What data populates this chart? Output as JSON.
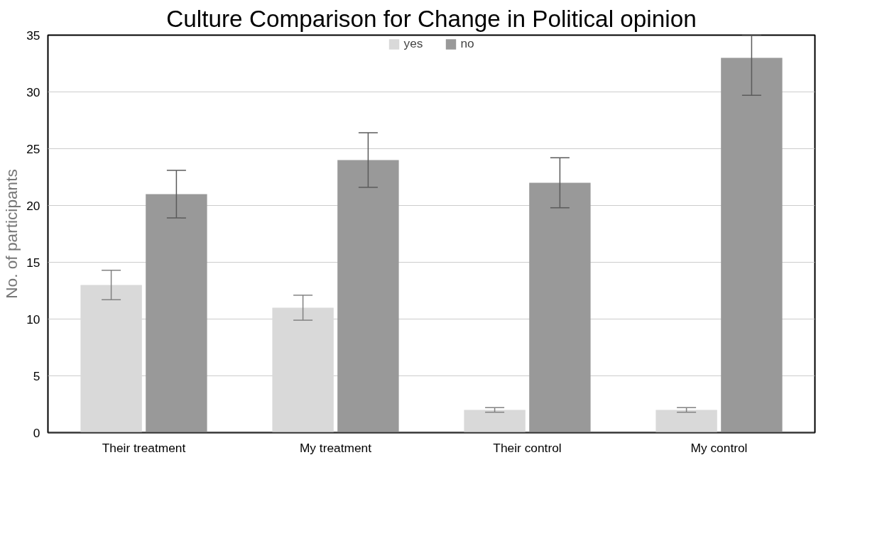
{
  "chart_data": {
    "type": "bar",
    "title": "Culture Comparison for Change in Political opinion",
    "ylabel": "No. of participants",
    "categories": [
      "Their treatment",
      "My treatment",
      "Their control",
      "My control"
    ],
    "series": [
      {
        "name": "yes",
        "color": "#d9d9d9",
        "values": [
          13,
          11,
          2,
          2
        ],
        "errors": [
          1.3,
          1.1,
          0.2,
          0.2
        ]
      },
      {
        "name": "no",
        "color": "#999999",
        "values": [
          21,
          24,
          22,
          33
        ],
        "errors": [
          2.1,
          2.4,
          2.2,
          [
            29.7,
            35
          ]
        ]
      }
    ],
    "ylim": [
      0,
      35
    ],
    "yticks": [
      0,
      5,
      10,
      15,
      20,
      25,
      30,
      35
    ],
    "grid": "y",
    "legend": "top"
  }
}
